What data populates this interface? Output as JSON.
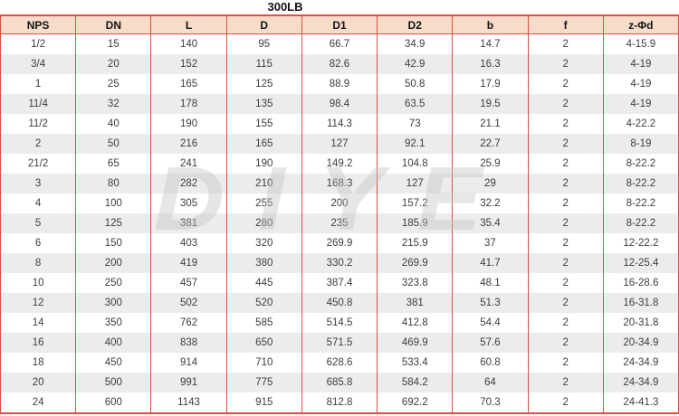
{
  "title": "300LB",
  "watermark": "DIYE",
  "colors": {
    "border_red": "#dd4f44",
    "header_bg": "#f6dcc9",
    "row_bg": "#ffffff",
    "row_alt_bg": "#ececec",
    "text": "#3d3d3d",
    "watermark_gray": "#c4c4c4"
  },
  "table": {
    "columns": [
      "NPS",
      "DN",
      "L",
      "D",
      "D1",
      "D2",
      "b",
      "f",
      "z-Φd"
    ],
    "rows": [
      [
        "1/2",
        "15",
        "140",
        "95",
        "66.7",
        "34.9",
        "14.7",
        "2",
        "4-15.9"
      ],
      [
        "3/4",
        "20",
        "152",
        "115",
        "82.6",
        "42.9",
        "16.3",
        "2",
        "4-19"
      ],
      [
        "1",
        "25",
        "165",
        "125",
        "88.9",
        "50.8",
        "17.9",
        "2",
        "4-19"
      ],
      [
        "11/4",
        "32",
        "178",
        "135",
        "98.4",
        "63.5",
        "19.5",
        "2",
        "4-19"
      ],
      [
        "11/2",
        "40",
        "190",
        "155",
        "114.3",
        "73",
        "21.1",
        "2",
        "4-22.2"
      ],
      [
        "2",
        "50",
        "216",
        "165",
        "127",
        "92.1",
        "22.7",
        "2",
        "8-19"
      ],
      [
        "21/2",
        "65",
        "241",
        "190",
        "149.2",
        "104.8",
        "25.9",
        "2",
        "8-22.2"
      ],
      [
        "3",
        "80",
        "282",
        "210",
        "168.3",
        "127",
        "29",
        "2",
        "8-22.2"
      ],
      [
        "4",
        "100",
        "305",
        "255",
        "200",
        "157.2",
        "32.2",
        "2",
        "8-22.2"
      ],
      [
        "5",
        "125",
        "381",
        "280",
        "235",
        "185.9",
        "35.4",
        "2",
        "8-22.2"
      ],
      [
        "6",
        "150",
        "403",
        "320",
        "269.9",
        "215.9",
        "37",
        "2",
        "12-22.2"
      ],
      [
        "8",
        "200",
        "419",
        "380",
        "330.2",
        "269.9",
        "41.7",
        "2",
        "12-25.4"
      ],
      [
        "10",
        "250",
        "457",
        "445",
        "387.4",
        "323.8",
        "48.1",
        "2",
        "16-28.6"
      ],
      [
        "12",
        "300",
        "502",
        "520",
        "450.8",
        "381",
        "51.3",
        "2",
        "16-31.8"
      ],
      [
        "14",
        "350",
        "762",
        "585",
        "514.5",
        "412.8",
        "54.4",
        "2",
        "20-31.8"
      ],
      [
        "16",
        "400",
        "838",
        "650",
        "571.5",
        "469.9",
        "57.6",
        "2",
        "20-34.9"
      ],
      [
        "18",
        "450",
        "914",
        "710",
        "628.6",
        "533.4",
        "60.8",
        "2",
        "24-34.9"
      ],
      [
        "20",
        "500",
        "991",
        "775",
        "685.8",
        "584.2",
        "64",
        "2",
        "24-34.9"
      ],
      [
        "24",
        "600",
        "1143",
        "915",
        "812.8",
        "692.2",
        "70.3",
        "2",
        "24-41.3"
      ]
    ]
  }
}
